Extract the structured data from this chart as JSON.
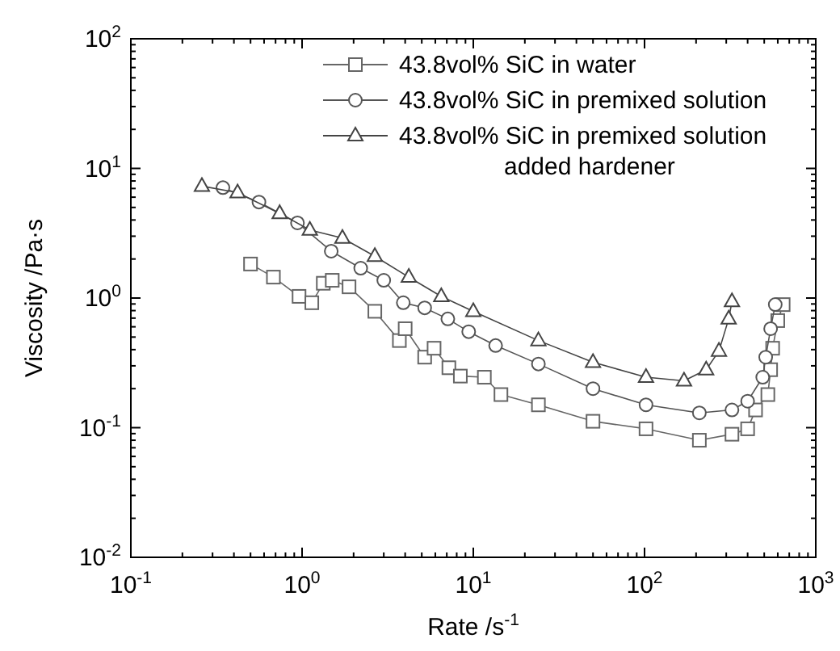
{
  "chart_data": {
    "type": "line",
    "xlabel": "Rate /s$^{-1}$",
    "ylabel": "Viscosity /Pa·s",
    "log": "xy",
    "legend": "top right",
    "grid": false,
    "xlim": [
      0.1,
      1000
    ],
    "xticks": [
      {
        "value": 0.1,
        "label": "10$^{-1}$"
      },
      {
        "value": 1,
        "label": "10$^{0}$"
      },
      {
        "value": 10,
        "label": "10$^{1}$"
      },
      {
        "value": 100,
        "label": "10$^{2}$"
      },
      {
        "value": 1000,
        "label": "10$^{3}$"
      }
    ],
    "ylim": [
      0.01,
      100
    ],
    "yticks": [
      {
        "value": 0.01,
        "label": "10$^{-2}$"
      },
      {
        "value": 0.1,
        "label": "10$^{-1}$"
      },
      {
        "value": 1,
        "label": "10$^{0}$"
      },
      {
        "value": 10,
        "label": "10$^{1}$"
      },
      {
        "value": 100,
        "label": "10$^{2}$"
      }
    ],
    "series": [
      {
        "name": "43.8vol% SiC in water",
        "color": "#666666",
        "marker": "square",
        "x": [
          0.5,
          0.68,
          0.96,
          1.14,
          1.33,
          1.5,
          1.88,
          2.66,
          3.7,
          4.0,
          5.2,
          5.9,
          7.2,
          8.4,
          11.6,
          14.5,
          24,
          50,
          102,
          209,
          324,
          400,
          445,
          525,
          545,
          560,
          600,
          645
        ],
        "values": [
          1.83,
          1.45,
          1.03,
          0.92,
          1.3,
          1.37,
          1.22,
          0.79,
          0.47,
          0.58,
          0.35,
          0.41,
          0.29,
          0.25,
          0.245,
          0.18,
          0.15,
          0.112,
          0.098,
          0.08,
          0.089,
          0.098,
          0.137,
          0.18,
          0.28,
          0.41,
          0.67,
          0.89
        ]
      },
      {
        "name": "43.8vol% SiC in premixed solution",
        "color": "#555555",
        "marker": "circle",
        "x": [
          0.345,
          0.56,
          0.94,
          1.48,
          2.2,
          3.0,
          3.9,
          5.2,
          7.1,
          9.4,
          13.5,
          24,
          50,
          102,
          209,
          324,
          400,
          490,
          510,
          545,
          580
        ],
        "values": [
          7.1,
          5.5,
          3.8,
          2.3,
          1.7,
          1.37,
          0.92,
          0.84,
          0.69,
          0.55,
          0.43,
          0.31,
          0.2,
          0.15,
          0.13,
          0.137,
          0.16,
          0.245,
          0.35,
          0.58,
          0.89
        ]
      },
      {
        "name": "43.8vol% SiC in premixed solution\nadded hardener",
        "color": "#444444",
        "marker": "triangle",
        "x": [
          0.26,
          0.42,
          0.74,
          1.11,
          1.72,
          2.66,
          4.2,
          6.5,
          10,
          24,
          50,
          102,
          170,
          229,
          272,
          310,
          324
        ],
        "values": [
          7.3,
          6.5,
          4.5,
          3.35,
          2.9,
          2.1,
          1.45,
          1.03,
          0.79,
          0.47,
          0.32,
          0.245,
          0.23,
          0.28,
          0.39,
          0.69,
          0.94
        ]
      }
    ]
  }
}
